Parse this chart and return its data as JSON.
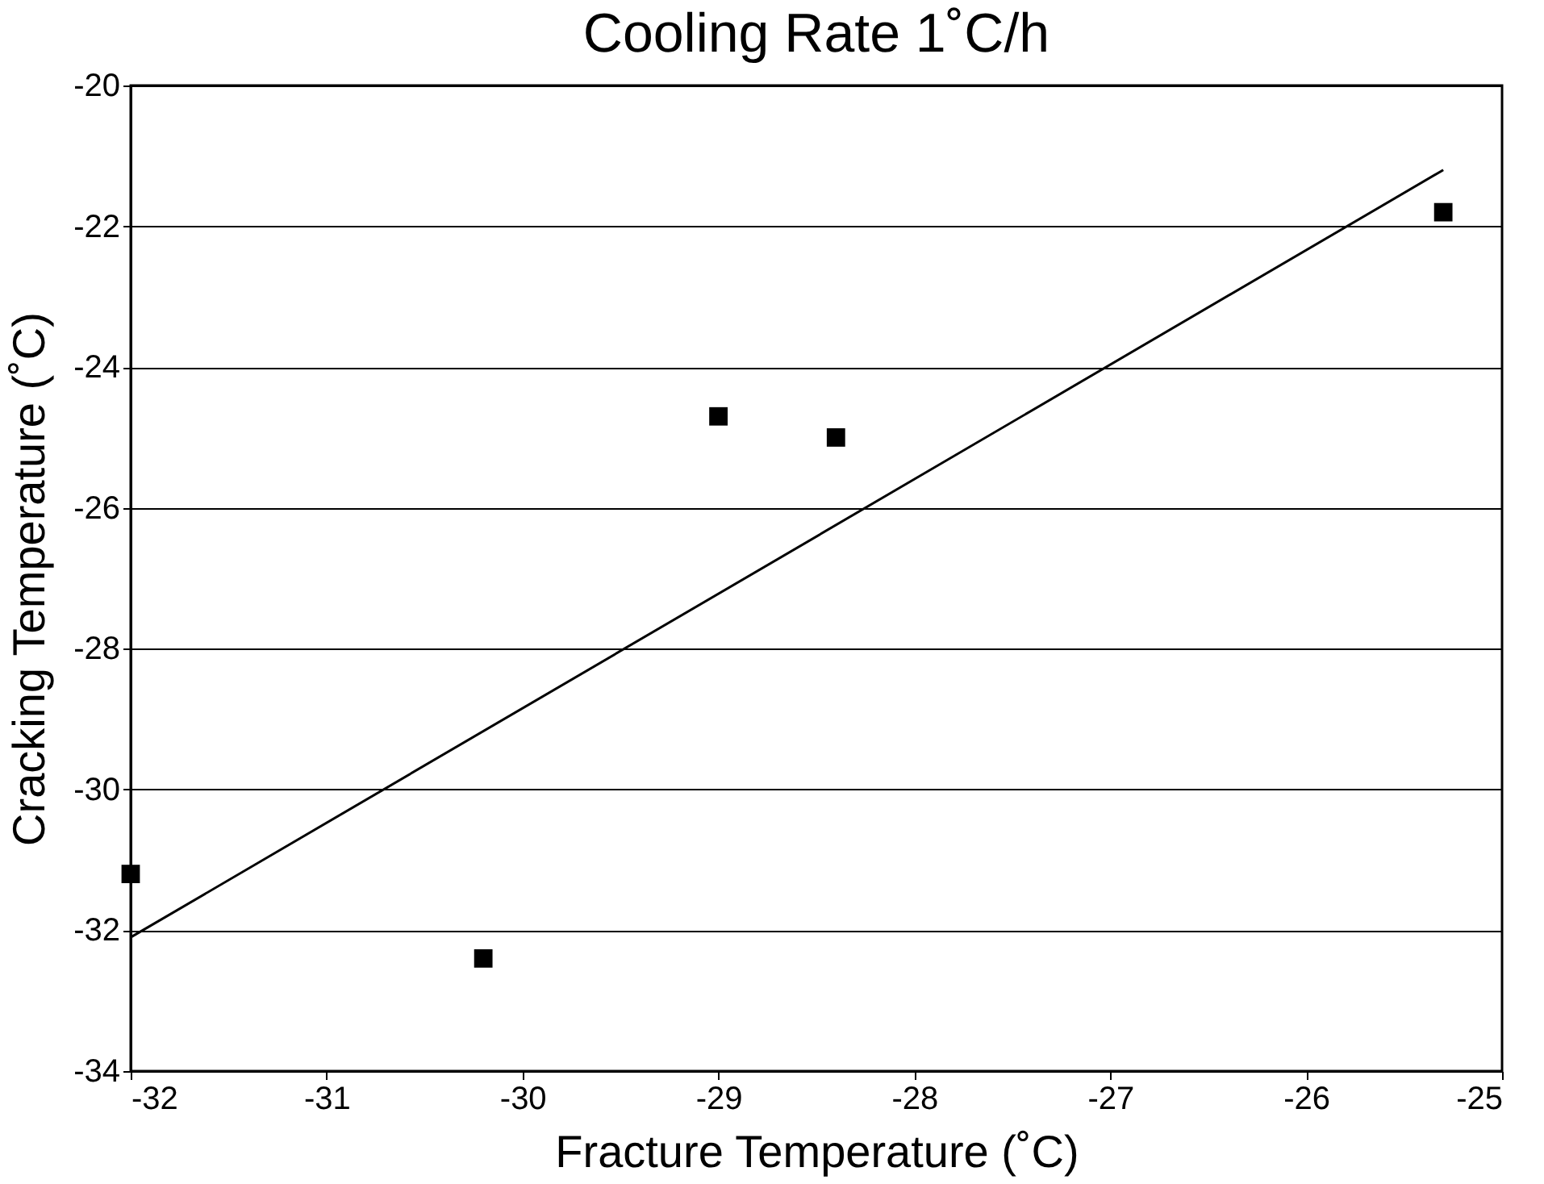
{
  "chart_data": {
    "type": "scatter",
    "title": "Cooling Rate 1˚C/h",
    "xlabel": "Fracture Temperature (˚C)",
    "ylabel": "Cracking Temperature (˚C)",
    "xlim": [
      -32,
      -25
    ],
    "xticks": [
      -32,
      -31,
      -30,
      -29,
      -28,
      -27,
      -26,
      -25
    ],
    "ylim": [
      -34,
      -20
    ],
    "yticks": [
      -34,
      -32,
      -30,
      -28,
      -26,
      -24,
      -22,
      -20
    ],
    "grid": "y",
    "series": [
      {
        "color": "#000000",
        "marker": "square",
        "x": [
          -32.0,
          -30.2,
          -29.0,
          -28.4,
          -25.3
        ],
        "values": [
          -31.2,
          -32.4,
          -24.7,
          -25.0,
          -21.8
        ]
      },
      {
        "type": "line",
        "color": "#000000",
        "x": [
          -32.0,
          -25.3
        ],
        "values": [
          -32.1,
          -21.2
        ]
      }
    ]
  }
}
